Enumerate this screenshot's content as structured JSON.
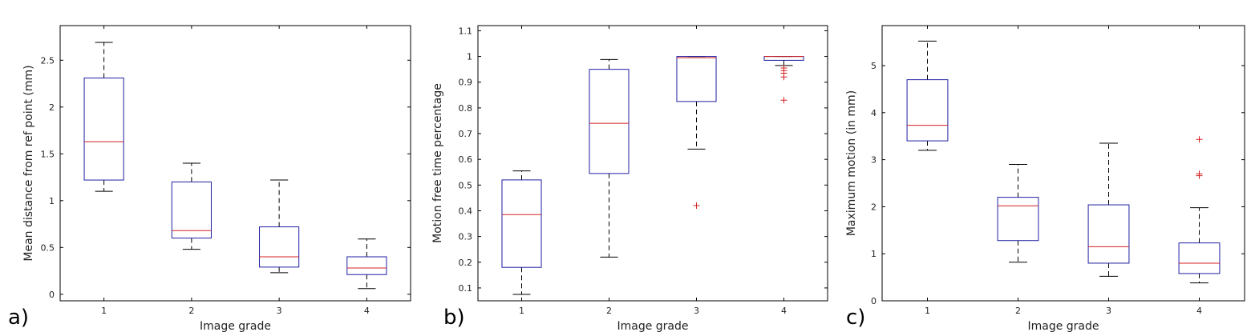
{
  "chart_data": [
    {
      "type": "box",
      "panel_label": "a)",
      "xlabel": "Image grade",
      "ylabel": "Mean distance from ref point (mm)",
      "categories": [
        "1",
        "2",
        "3",
        "4"
      ],
      "ylim": [
        -0.07,
        2.87
      ],
      "yticks": [
        0,
        0.5,
        1,
        1.5,
        2,
        2.5
      ],
      "ytick_labels": [
        "0",
        "0.5",
        "1",
        "1.5",
        "2",
        "2.5"
      ],
      "boxes": [
        {
          "category": "1",
          "whisker_low": 1.1,
          "q1": 1.22,
          "median": 1.63,
          "q3": 2.31,
          "whisker_high": 2.69,
          "outliers": []
        },
        {
          "category": "2",
          "whisker_low": 0.48,
          "q1": 0.6,
          "median": 0.68,
          "q3": 1.2,
          "whisker_high": 1.4,
          "outliers": []
        },
        {
          "category": "3",
          "whisker_low": 0.23,
          "q1": 0.29,
          "median": 0.4,
          "q3": 0.72,
          "whisker_high": 1.22,
          "outliers": []
        },
        {
          "category": "4",
          "whisker_low": 0.06,
          "q1": 0.21,
          "median": 0.28,
          "q3": 0.4,
          "whisker_high": 0.59,
          "outliers": []
        }
      ],
      "grid": false,
      "box_color": "#1f1fa3",
      "median_color": "#d62020",
      "whisker_color": "#000000",
      "outlier_color": "#d62020"
    },
    {
      "type": "box",
      "panel_label": "b)",
      "xlabel": "Image grade",
      "ylabel": "Motion free time percentage",
      "categories": [
        "1",
        "2",
        "3",
        "4"
      ],
      "ylim": [
        0.05,
        1.12
      ],
      "yticks": [
        0.1,
        0.2,
        0.3,
        0.4,
        0.5,
        0.6,
        0.7,
        0.8,
        0.9,
        1,
        1.1
      ],
      "ytick_labels": [
        "0.1",
        "0.2",
        "0.3",
        "0.4",
        "0.5",
        "0.6",
        "0.7",
        "0.8",
        "0.9",
        "1",
        "1.1"
      ],
      "boxes": [
        {
          "category": "1",
          "whisker_low": 0.075,
          "q1": 0.18,
          "median": 0.385,
          "q3": 0.52,
          "whisker_high": 0.555,
          "outliers": []
        },
        {
          "category": "2",
          "whisker_low": 0.22,
          "q1": 0.545,
          "median": 0.74,
          "q3": 0.95,
          "whisker_high": 0.988,
          "outliers": []
        },
        {
          "category": "3",
          "whisker_low": 0.64,
          "q1": 0.825,
          "median": 0.995,
          "q3": 1.0,
          "whisker_high": 1.0,
          "outliers": [
            0.42
          ]
        },
        {
          "category": "4",
          "whisker_low": 0.965,
          "q1": 0.985,
          "median": 1.0,
          "q3": 1.0,
          "whisker_high": 1.0,
          "outliers": [
            0.955,
            0.945,
            0.935,
            0.92,
            0.83
          ]
        }
      ],
      "grid": false,
      "box_color": "#1f1fa3",
      "median_color": "#d62020",
      "whisker_color": "#000000",
      "outlier_color": "#d62020"
    },
    {
      "type": "box",
      "panel_label": "c)",
      "xlabel": "Image grade",
      "ylabel": "Maximum motion (in mm)",
      "categories": [
        "1",
        "2",
        "3",
        "4"
      ],
      "ylim": [
        0,
        5.85
      ],
      "yticks": [
        0,
        1,
        2,
        3,
        4,
        5
      ],
      "ytick_labels": [
        "0",
        "1",
        "2",
        "3",
        "4",
        "5"
      ],
      "boxes": [
        {
          "category": "1",
          "whisker_low": 3.2,
          "q1": 3.4,
          "median": 3.73,
          "q3": 4.7,
          "whisker_high": 5.52,
          "outliers": []
        },
        {
          "category": "2",
          "whisker_low": 0.82,
          "q1": 1.28,
          "median": 2.02,
          "q3": 2.2,
          "whisker_high": 2.9,
          "outliers": []
        },
        {
          "category": "3",
          "whisker_low": 0.52,
          "q1": 0.8,
          "median": 1.15,
          "q3": 2.04,
          "whisker_high": 3.35,
          "outliers": []
        },
        {
          "category": "4",
          "whisker_low": 0.38,
          "q1": 0.58,
          "median": 0.8,
          "q3": 1.23,
          "whisker_high": 1.98,
          "outliers": [
            3.43,
            2.7,
            2.66
          ]
        }
      ],
      "grid": false,
      "box_color": "#1f1fa3",
      "median_color": "#d62020",
      "whisker_color": "#000000",
      "outlier_color": "#d62020"
    }
  ]
}
